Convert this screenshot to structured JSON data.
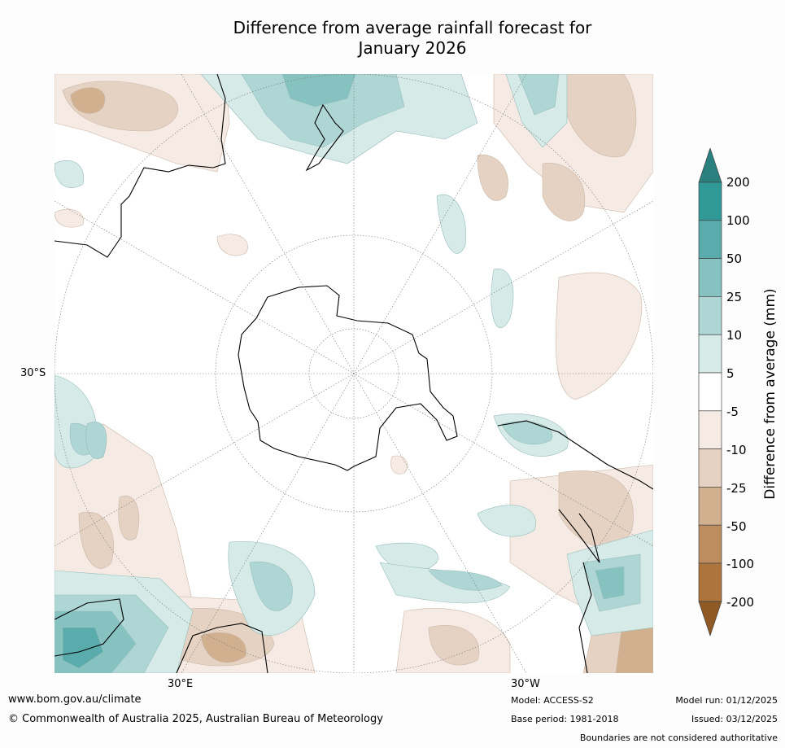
{
  "title": {
    "line1": "Difference from average rainfall forecast for",
    "line2": "January 2026"
  },
  "map": {
    "projection": "south-polar stereographic",
    "lat_labels": [
      "30°S"
    ],
    "lon_labels": [
      "30°E",
      "30°W"
    ]
  },
  "colorbar": {
    "label": "Difference from average (mm)",
    "ticks": [
      "200",
      "100",
      "50",
      "25",
      "10",
      "5",
      "-5",
      "-10",
      "-25",
      "-50",
      "-100",
      "-200"
    ],
    "colors": {
      "above_200": "#2a7f7f",
      "100_200": "#319a98",
      "50_100": "#5aabab",
      "25_50": "#85c2c0",
      "10_25": "#aed6d4",
      "5_10": "#d6eae8",
      "neutral": "#ffffff",
      "m5_m10": "#f5ebe4",
      "m10_m25": "#e5d2c2",
      "m25_m50": "#d1b090",
      "m50_m100": "#bd8d60",
      "m100_m200": "#ad743c",
      "below_m200": "#8f5a26"
    }
  },
  "footer": {
    "website": "www.bom.gov.au/climate",
    "copyright": "© Commonwealth of Australia 2025, Australian Bureau of Meteorology",
    "model": "Model: ACCESS-S2",
    "base_period": "Base period: 1981-2018",
    "model_run": "Model run: 01/12/2025",
    "issued": "Issued: 03/12/2025",
    "disclaimer": "Boundaries are not considered authoritative"
  }
}
